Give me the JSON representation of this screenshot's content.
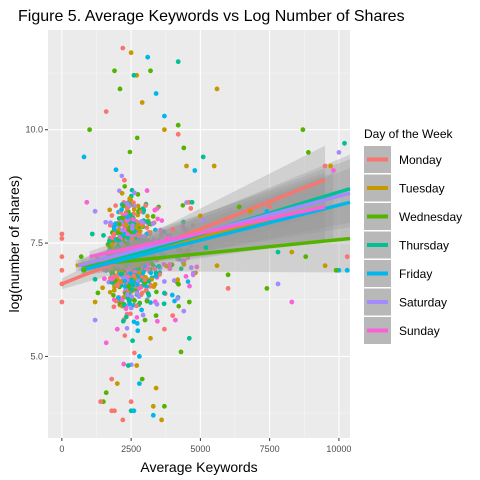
{
  "chart_data": {
    "type": "scatter",
    "title": "Figure 5. Average Keywords vs Log Number of Shares",
    "xlabel": "Average Keywords",
    "ylabel": "log(number of shares)",
    "xlim": [
      -500,
      10400
    ],
    "ylim": [
      3.2,
      12.2
    ],
    "x_ticks": [
      0,
      2500,
      5000,
      7500,
      10000
    ],
    "x_tick_labels": [
      "0",
      "2500",
      "5000",
      "7500",
      "10000"
    ],
    "y_ticks": [
      5.0,
      7.5,
      10.0
    ],
    "y_tick_labels": [
      "5.0",
      "7.5",
      "10.0"
    ],
    "grid": true,
    "legend_title": "Day of the Week",
    "legend_position": "right",
    "series": [
      {
        "name": "Monday",
        "color": "#F8766D",
        "fit": {
          "x": [
            0,
            9500
          ],
          "y": [
            6.6,
            8.9
          ]
        }
      },
      {
        "name": "Tuesday",
        "color": "#C49A00",
        "fit": {
          "x": [
            500,
            9800
          ],
          "y": [
            7.0,
            8.3
          ]
        }
      },
      {
        "name": "Wednesday",
        "color": "#53B400",
        "fit": {
          "x": [
            700,
            10400
          ],
          "y": [
            7.0,
            7.6
          ]
        }
      },
      {
        "name": "Thursday",
        "color": "#00C094",
        "fit": {
          "x": [
            700,
            10400
          ],
          "y": [
            6.9,
            8.7
          ]
        }
      },
      {
        "name": "Friday",
        "color": "#00B6EB",
        "fit": {
          "x": [
            700,
            10400
          ],
          "y": [
            6.9,
            8.4
          ]
        }
      },
      {
        "name": "Saturday",
        "color": "#A58AFF",
        "fit": {
          "x": [
            600,
            10400
          ],
          "y": [
            7.0,
            8.6
          ]
        }
      },
      {
        "name": "Sunday",
        "color": "#FB61D7",
        "fit": {
          "x": [
            1000,
            9500
          ],
          "y": [
            7.2,
            8.3
          ]
        }
      }
    ],
    "points": [
      [
        0,
        6.2,
        0
      ],
      [
        0,
        7.6,
        0
      ],
      [
        0,
        7.2,
        0
      ],
      [
        0,
        6.6,
        0
      ],
      [
        0,
        7.7,
        0
      ],
      [
        0,
        6.9,
        0
      ],
      [
        2200,
        11.8,
        0
      ],
      [
        2500,
        11.7,
        1
      ],
      [
        2700,
        11.2,
        1
      ],
      [
        1900,
        11.3,
        2
      ],
      [
        2600,
        11.2,
        3
      ],
      [
        3100,
        11.6,
        4
      ],
      [
        3200,
        11.3,
        2
      ],
      [
        2100,
        10.9,
        2
      ],
      [
        2900,
        10.6,
        1
      ],
      [
        3400,
        10.8,
        4
      ],
      [
        4200,
        11.5,
        3
      ],
      [
        4200,
        10.1,
        2
      ],
      [
        5600,
        10.9,
        1
      ],
      [
        3700,
        10.3,
        4
      ],
      [
        1600,
        10.4,
        0
      ],
      [
        8700,
        10.0,
        2
      ],
      [
        9700,
        9.2,
        1
      ],
      [
        9500,
        9.2,
        0
      ],
      [
        10000,
        9.5,
        5
      ],
      [
        10200,
        9.7,
        3
      ],
      [
        8900,
        9.5,
        2
      ],
      [
        9800,
        9.1,
        6
      ],
      [
        6800,
        8.2,
        1
      ],
      [
        6400,
        8.3,
        2
      ],
      [
        7500,
        8.3,
        0
      ],
      [
        7400,
        8.2,
        4
      ],
      [
        8300,
        7.3,
        1
      ],
      [
        8800,
        7.2,
        2
      ],
      [
        9500,
        7.0,
        1
      ],
      [
        10000,
        6.9,
        4
      ],
      [
        10300,
        7.2,
        0
      ],
      [
        10300,
        6.9,
        4
      ],
      [
        9900,
        6.9,
        2
      ],
      [
        7800,
        7.3,
        3
      ],
      [
        7800,
        6.6,
        5
      ],
      [
        7400,
        6.5,
        2
      ],
      [
        8300,
        6.2,
        6
      ],
      [
        6000,
        6.5,
        0
      ],
      [
        6000,
        6.8,
        2
      ],
      [
        5600,
        7.0,
        1
      ],
      [
        5200,
        7.4,
        3
      ],
      [
        4600,
        6.2,
        2
      ],
      [
        4400,
        6.0,
        5
      ],
      [
        4000,
        5.9,
        0
      ],
      [
        4100,
        5.8,
        6
      ],
      [
        4300,
        5.1,
        2
      ],
      [
        4600,
        5.4,
        3
      ],
      [
        2800,
        5.0,
        4
      ],
      [
        2700,
        4.8,
        1
      ],
      [
        2400,
        4.8,
        3
      ],
      [
        1800,
        4.5,
        0
      ],
      [
        2900,
        4.5,
        2
      ],
      [
        2800,
        4.4,
        4
      ],
      [
        2000,
        4.4,
        1
      ],
      [
        1600,
        4.2,
        2
      ],
      [
        1500,
        4.0,
        2
      ],
      [
        1400,
        4.0,
        0
      ],
      [
        1900,
        3.8,
        0
      ],
      [
        1800,
        3.8,
        0
      ],
      [
        2500,
        3.8,
        3
      ],
      [
        3400,
        4.3,
        1
      ],
      [
        3700,
        3.9,
        2
      ],
      [
        3600,
        3.6,
        1
      ],
      [
        3300,
        3.7,
        4
      ],
      [
        3300,
        3.9,
        1
      ],
      [
        2500,
        4.0,
        0
      ],
      [
        2600,
        3.8,
        4
      ],
      [
        2200,
        3.6,
        0
      ],
      [
        1600,
        5.3,
        6
      ],
      [
        3200,
        5.4,
        1
      ],
      [
        3700,
        5.6,
        0
      ],
      [
        3400,
        5.9,
        2
      ],
      [
        3000,
        5.8,
        2
      ],
      [
        1200,
        5.8,
        5
      ],
      [
        1300,
        6.4,
        2
      ],
      [
        2000,
        5.6,
        6
      ],
      [
        4200,
        9.9,
        0
      ],
      [
        4500,
        9.2,
        1
      ],
      [
        4400,
        9.6,
        2
      ],
      [
        5100,
        9.4,
        3
      ],
      [
        5500,
        9.2,
        1
      ],
      [
        4800,
        9.1,
        4
      ],
      [
        3700,
        10.0,
        1
      ],
      [
        1000,
        10.0,
        2
      ],
      [
        800,
        9.4,
        4
      ],
      [
        1200,
        8.2,
        5
      ],
      [
        900,
        8.4,
        6
      ],
      [
        1100,
        7.7,
        3
      ],
      [
        700,
        7.2,
        2
      ],
      [
        800,
        6.9,
        2
      ],
      [
        1200,
        6.7,
        3
      ],
      [
        5100,
        8.0,
        5
      ],
      [
        4600,
        8.4,
        0
      ],
      [
        4700,
        8.4,
        3
      ],
      [
        5000,
        8.1,
        1
      ],
      [
        4000,
        7.8,
        0
      ],
      [
        3800,
        7.6,
        6
      ],
      [
        1200,
        6.2,
        1
      ]
    ]
  }
}
